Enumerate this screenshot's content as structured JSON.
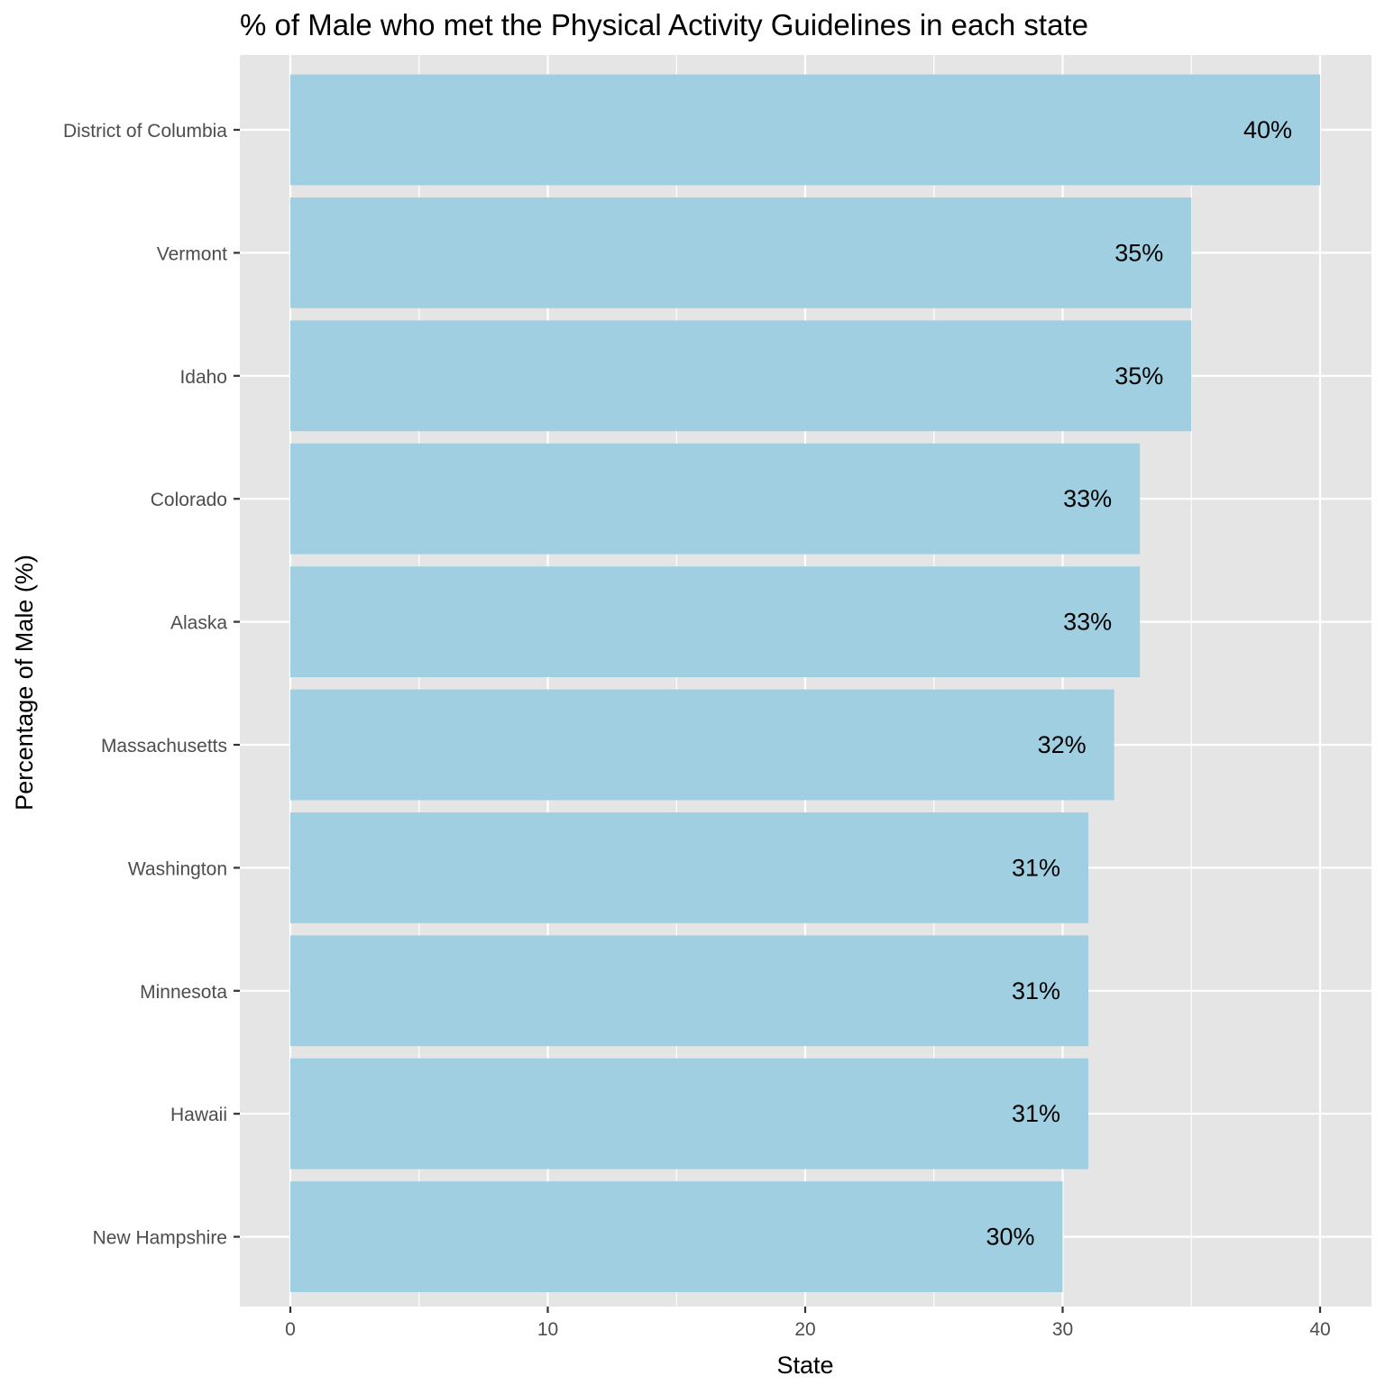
{
  "chart_data": {
    "type": "bar",
    "orientation": "horizontal",
    "title": "% of Male who met the Physical Activity Guidelines in each state",
    "xlabel": "State",
    "ylabel": "Percentage of Male (%)",
    "xlim": [
      0,
      40
    ],
    "x_ticks": [
      "0",
      "10",
      "20",
      "30",
      "40"
    ],
    "grid": true,
    "categories": [
      "District of Columbia",
      "Vermont",
      "Idaho",
      "Colorado",
      "Alaska",
      "Massachusetts",
      "Washington",
      "Minnesota",
      "Hawaii",
      "New Hampshire"
    ],
    "values": [
      40,
      35,
      35,
      33,
      33,
      32,
      31,
      31,
      31,
      30
    ],
    "data_labels": [
      "40%",
      "35%",
      "35%",
      "33%",
      "33%",
      "32%",
      "31%",
      "31%",
      "31%",
      "30%"
    ],
    "colors": {
      "bar": "#9fcfe0",
      "panel": "#e5e5e5",
      "grid": "#ffffff",
      "tick": "#333333"
    }
  }
}
